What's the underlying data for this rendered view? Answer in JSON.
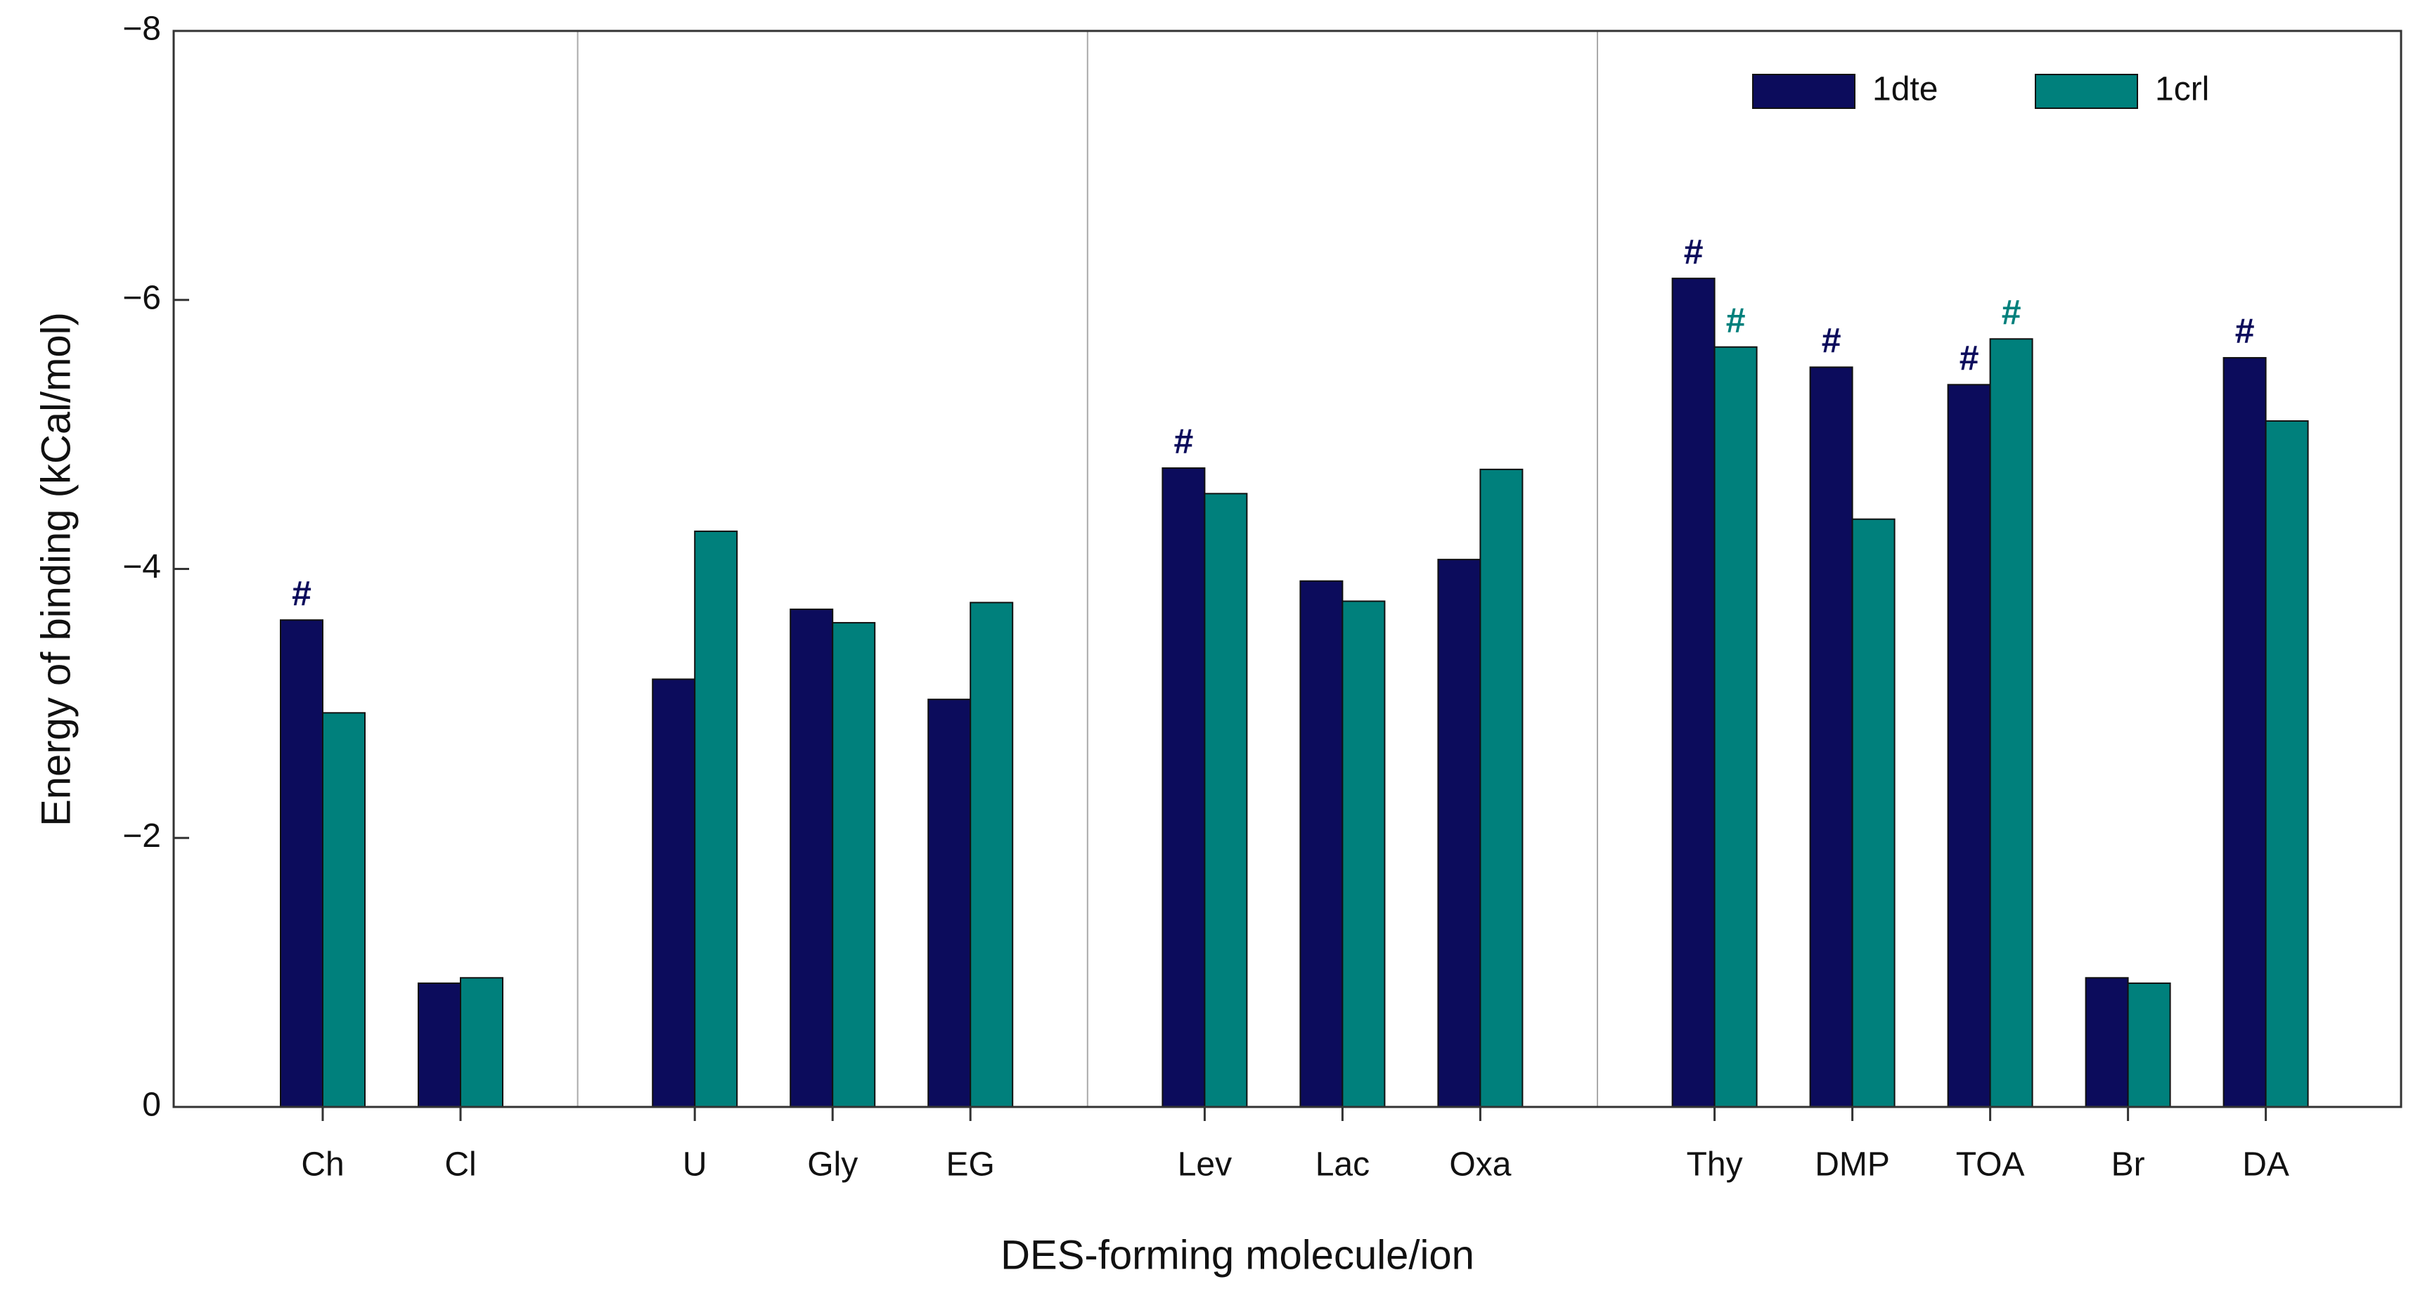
{
  "chart_data": {
    "type": "bar",
    "xlabel": "DES-forming molecule/ion",
    "ylabel": "Energy of binding (kCal/mol)",
    "categories": [
      "Ch",
      "Cl",
      null,
      "U",
      "Gly",
      "EG",
      null,
      "Lev",
      "Lac",
      "Oxa",
      null,
      "Thy",
      "DMP",
      "TOA",
      "Br",
      "DA"
    ],
    "series": [
      {
        "name": "1dte",
        "color": "#0c0c5c",
        "values": [
          -3.62,
          -0.92,
          null,
          -3.18,
          -3.7,
          -3.03,
          null,
          -4.75,
          -3.91,
          -4.07,
          null,
          -6.16,
          -5.5,
          -5.37,
          -0.96,
          -5.57
        ]
      },
      {
        "name": "1crl",
        "color": "#00807c",
        "values": [
          -2.93,
          -0.96,
          null,
          -4.28,
          -3.6,
          -3.75,
          null,
          -4.56,
          -3.76,
          -4.74,
          null,
          -5.65,
          -4.37,
          -5.71,
          -0.92,
          -5.1
        ]
      }
    ],
    "ylim": [
      0,
      -8
    ],
    "yticks": [
      0,
      {
        "value": -2,
        "label": "−2"
      },
      {
        "value": -4,
        "label": "−4"
      },
      {
        "value": -6,
        "label": "−6"
      },
      {
        "value": -8,
        "label": "−8"
      }
    ],
    "legend": "upper right",
    "annotations": [
      {
        "text": "#",
        "category": "Ch",
        "series": "1dte"
      },
      {
        "text": "#",
        "category": "Lev",
        "series": "1dte"
      },
      {
        "text": "#",
        "category": "Thy",
        "series": "1dte"
      },
      {
        "text": "#",
        "category": "Thy",
        "series": "1crl"
      },
      {
        "text": "#",
        "category": "DMP",
        "series": "1dte"
      },
      {
        "text": "#",
        "category": "TOA",
        "series": "1dte"
      },
      {
        "text": "#",
        "category": "TOA",
        "series": "1crl"
      },
      {
        "text": "#",
        "category": "DA",
        "series": "1dte"
      }
    ]
  }
}
